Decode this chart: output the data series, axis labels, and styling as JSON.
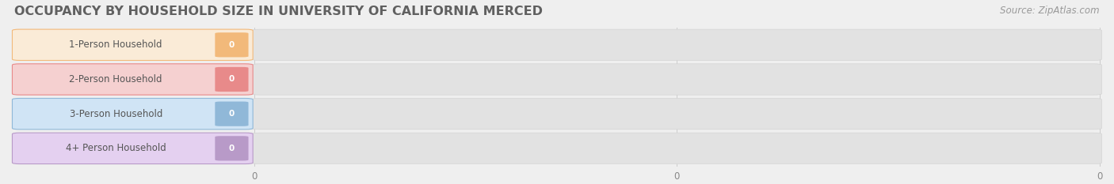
{
  "title": "OCCUPANCY BY HOUSEHOLD SIZE IN UNIVERSITY OF CALIFORNIA MERCED",
  "source": "Source: ZipAtlas.com",
  "categories": [
    "1-Person Household",
    "2-Person Household",
    "3-Person Household",
    "4+ Person Household"
  ],
  "values": [
    0,
    0,
    0,
    0
  ],
  "bar_colors": [
    "#f2b97a",
    "#e88a8a",
    "#90b8d8",
    "#b89ac8"
  ],
  "label_bg_colors": [
    "#faebd7",
    "#f5d0d0",
    "#d0e4f5",
    "#e4d0f0"
  ],
  "background_color": "#efefef",
  "bar_bg_color": "#e2e2e2",
  "title_fontsize": 11.5,
  "label_fontsize": 8.5,
  "source_fontsize": 8.5,
  "value_fontsize": 7.5,
  "tick_fontsize": 8.5
}
